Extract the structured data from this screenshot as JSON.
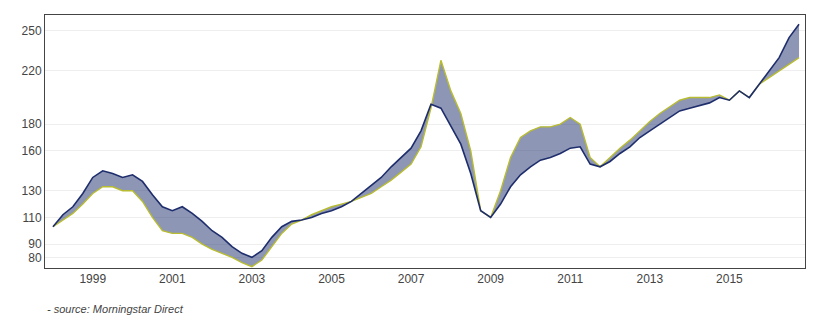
{
  "chart_data": {
    "type": "line",
    "x": [
      1998.0,
      1998.25,
      1998.5,
      1998.75,
      1999.0,
      1999.25,
      1999.5,
      1999.75,
      2000.0,
      2000.25,
      2000.5,
      2000.75,
      2001.0,
      2001.25,
      2001.5,
      2001.75,
      2002.0,
      2002.25,
      2002.5,
      2002.75,
      2003.0,
      2003.25,
      2003.5,
      2003.75,
      2004.0,
      2004.25,
      2004.5,
      2004.75,
      2005.0,
      2005.25,
      2005.5,
      2005.75,
      2006.0,
      2006.25,
      2006.5,
      2006.75,
      2007.0,
      2007.25,
      2007.5,
      2007.75,
      2008.0,
      2008.25,
      2008.5,
      2008.75,
      2009.0,
      2009.25,
      2009.5,
      2009.75,
      2010.0,
      2010.25,
      2010.5,
      2010.75,
      2011.0,
      2011.25,
      2011.5,
      2011.75,
      2012.0,
      2012.25,
      2012.5,
      2012.75,
      2013.0,
      2013.25,
      2013.5,
      2013.75,
      2014.0,
      2014.25,
      2014.5,
      2014.75,
      2015.0,
      2015.25,
      2015.5,
      2015.75,
      2016.0,
      2016.25,
      2016.5,
      2016.75
    ],
    "series": [
      {
        "color": "#b8bc30",
        "values": [
          103,
          108,
          113,
          120,
          128,
          133,
          133,
          130,
          130,
          122,
          110,
          100,
          98,
          98,
          95,
          90,
          86,
          83,
          80,
          76,
          73,
          78,
          88,
          98,
          105,
          108,
          112,
          115,
          118,
          120,
          122,
          125,
          128,
          133,
          138,
          144,
          150,
          163,
          192,
          228,
          205,
          188,
          160,
          115,
          110,
          130,
          155,
          170,
          175,
          178,
          178,
          180,
          185,
          180,
          155,
          148,
          155,
          162,
          168,
          175,
          182,
          188,
          193,
          198,
          200,
          200,
          200,
          202,
          198,
          205,
          200,
          210,
          215,
          220,
          225,
          230
        ]
      },
      {
        "color": "#1e2d6b",
        "values": [
          103,
          112,
          118,
          128,
          140,
          145,
          143,
          140,
          142,
          137,
          127,
          118,
          115,
          118,
          113,
          107,
          100,
          95,
          88,
          83,
          80,
          85,
          95,
          103,
          107,
          108,
          110,
          113,
          115,
          118,
          122,
          128,
          134,
          140,
          148,
          155,
          162,
          175,
          195,
          192,
          178,
          165,
          143,
          115,
          110,
          120,
          133,
          142,
          148,
          153,
          155,
          158,
          162,
          163,
          150,
          148,
          152,
          158,
          163,
          170,
          175,
          180,
          185,
          190,
          192,
          194,
          196,
          200,
          198,
          205,
          200,
          210,
          220,
          230,
          245,
          255
        ]
      }
    ],
    "xlim": [
      1997.8,
      2016.9
    ],
    "xticks": [
      1999,
      2001,
      2003,
      2005,
      2007,
      2009,
      2011,
      2013,
      2015
    ],
    "ylim": [
      72,
      262
    ],
    "yticks": [
      80,
      90,
      110,
      130,
      160,
      180,
      220,
      250
    ],
    "grid": true,
    "annotations": [
      "- source: Morningstar Direct"
    ]
  }
}
